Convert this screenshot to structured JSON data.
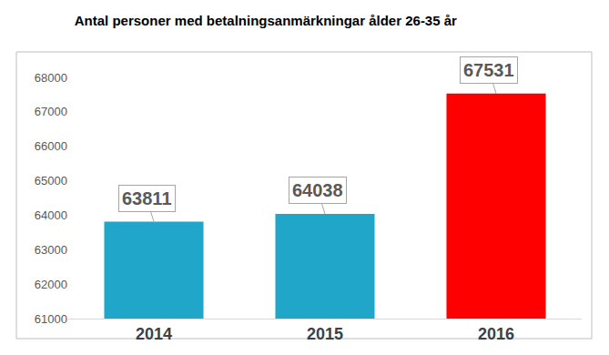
{
  "chart_data": {
    "type": "bar",
    "title": "Antal personer med betalningsanmärkningar ålder 26-35 år",
    "categories": [
      "2014",
      "2015",
      "2016"
    ],
    "values": [
      63811,
      64038,
      67531
    ],
    "colors": [
      "#1fa6c9",
      "#1fa6c9",
      "#ff0000"
    ],
    "ylim": [
      61000,
      68000
    ],
    "yticks": [
      61000,
      62000,
      63000,
      64000,
      65000,
      66000,
      67000,
      68000
    ],
    "grid": false,
    "data_labels": true
  }
}
